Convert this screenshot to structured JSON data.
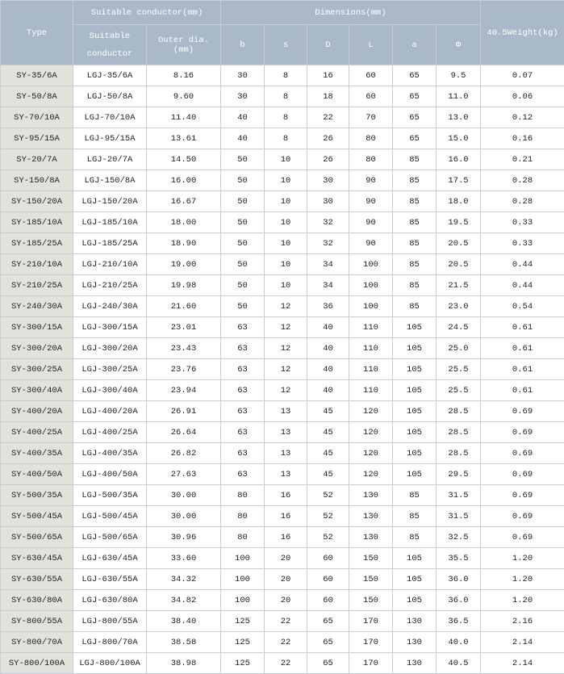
{
  "table": {
    "headers": {
      "type": "Type",
      "conductor_group": "Suitable conductor(mm)",
      "dimensions_group": "Dimensions(mm)",
      "weight": "40.5Weight(kg)",
      "columns": [
        "Suitable conductor",
        "Outer dia.(mm)",
        "b",
        "s",
        "D",
        "L",
        "a",
        "Φ"
      ]
    },
    "rows": [
      [
        "SY-35/6A",
        "LGJ-35/6A",
        "8.16",
        "30",
        "8",
        "16",
        "60",
        "65",
        "9.5",
        "0.07"
      ],
      [
        "SY-50/8A",
        "LGJ-50/8A",
        "9.60",
        "30",
        "8",
        "18",
        "60",
        "65",
        "11.0",
        "0.06"
      ],
      [
        "SY-70/10A",
        "LGJ-70/10A",
        "11.40",
        "40",
        "8",
        "22",
        "70",
        "65",
        "13.0",
        "0.12"
      ],
      [
        "SY-95/15A",
        "LGJ-95/15A",
        "13.61",
        "40",
        "8",
        "26",
        "80",
        "65",
        "15.0",
        "0.16"
      ],
      [
        "SY-20/7A",
        "LGJ-20/7A",
        "14.50",
        "50",
        "10",
        "26",
        "80",
        "85",
        "16.0",
        "0.21"
      ],
      [
        "SY-150/8A",
        "LGJ-150/8A",
        "16.00",
        "50",
        "10",
        "30",
        "90",
        "85",
        "17.5",
        "0.28"
      ],
      [
        "SY-150/20A",
        "LGJ-150/20A",
        "16.67",
        "50",
        "10",
        "30",
        "90",
        "85",
        "18.0",
        "0.28"
      ],
      [
        "SY-185/10A",
        "LGJ-185/10A",
        "18.00",
        "50",
        "10",
        "32",
        "90",
        "85",
        "19.5",
        "0.33"
      ],
      [
        "SY-185/25A",
        "LGJ-185/25A",
        "18.90",
        "50",
        "10",
        "32",
        "90",
        "85",
        "20.5",
        "0.33"
      ],
      [
        "SY-210/10A",
        "LGJ-210/10A",
        "19.00",
        "50",
        "10",
        "34",
        "100",
        "85",
        "20.5",
        "0.44"
      ],
      [
        "SY-210/25A",
        "LGJ-210/25A",
        "19.98",
        "50",
        "10",
        "34",
        "100",
        "85",
        "21.5",
        "0.44"
      ],
      [
        "SY-240/30A",
        "LGJ-240/30A",
        "21.60",
        "50",
        "12",
        "36",
        "100",
        "85",
        "23.0",
        "0.54"
      ],
      [
        "SY-300/15A",
        "LGJ-300/15A",
        "23.01",
        "63",
        "12",
        "40",
        "110",
        "105",
        "24.5",
        "0.61"
      ],
      [
        "SY-300/20A",
        "LGJ-300/20A",
        "23.43",
        "63",
        "12",
        "40",
        "110",
        "105",
        "25.0",
        "0.61"
      ],
      [
        "SY-300/25A",
        "LGJ-300/25A",
        "23.76",
        "63",
        "12",
        "40",
        "110",
        "105",
        "25.5",
        "0.61"
      ],
      [
        "SY-300/40A",
        "LGJ-300/40A",
        "23.94",
        "63",
        "12",
        "40",
        "110",
        "105",
        "25.5",
        "0.61"
      ],
      [
        "SY-400/20A",
        "LGJ-400/20A",
        "26.91",
        "63",
        "13",
        "45",
        "120",
        "105",
        "28.5",
        "0.69"
      ],
      [
        "SY-400/25A",
        "LGJ-400/25A",
        "26.64",
        "63",
        "13",
        "45",
        "120",
        "105",
        "28.5",
        "0.69"
      ],
      [
        "SY-400/35A",
        "LGJ-400/35A",
        "26.82",
        "63",
        "13",
        "45",
        "120",
        "105",
        "28.5",
        "0.69"
      ],
      [
        "SY-400/50A",
        "LGJ-400/50A",
        "27.63",
        "63",
        "13",
        "45",
        "120",
        "105",
        "29.5",
        "0.69"
      ],
      [
        "SY-500/35A",
        "LGJ-500/35A",
        "30.00",
        "80",
        "16",
        "52",
        "130",
        "85",
        "31.5",
        "0.69"
      ],
      [
        "SY-500/45A",
        "LGJ-500/45A",
        "30.00",
        "80",
        "16",
        "52",
        "130",
        "85",
        "31.5",
        "0.69"
      ],
      [
        "SY-500/65A",
        "LGJ-500/65A",
        "30.96",
        "80",
        "16",
        "52",
        "130",
        "85",
        "32.5",
        "0.69"
      ],
      [
        "SY-630/45A",
        "LGJ-630/45A",
        "33.60",
        "100",
        "20",
        "60",
        "150",
        "105",
        "35.5",
        "1.20"
      ],
      [
        "SY-630/55A",
        "LGJ-630/55A",
        "34.32",
        "100",
        "20",
        "60",
        "150",
        "105",
        "36.0",
        "1.20"
      ],
      [
        "SY-630/80A",
        "LGJ-630/80A",
        "34.82",
        "100",
        "20",
        "60",
        "150",
        "105",
        "36.0",
        "1.20"
      ],
      [
        "SY-800/55A",
        "LGJ-800/55A",
        "38.40",
        "125",
        "22",
        "65",
        "170",
        "130",
        "36.5",
        "2.16"
      ],
      [
        "SY-800/70A",
        "LGJ-800/70A",
        "38.58",
        "125",
        "22",
        "65",
        "170",
        "130",
        "40.0",
        "2.14"
      ],
      [
        "SY-800/100A",
        "LGJ-800/100A",
        "38.98",
        "125",
        "22",
        "65",
        "170",
        "130",
        "40.5",
        "2.14"
      ]
    ]
  }
}
